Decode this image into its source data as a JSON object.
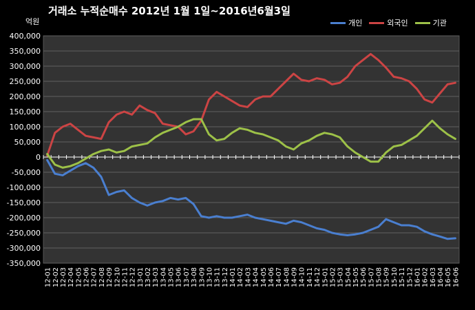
{
  "chart_data": {
    "type": "line",
    "title": "거래소 누적순매수 2012년 1월 1일~2016년6월3일",
    "unit_label": "억원",
    "ylim": [
      -350000,
      400000
    ],
    "y_ticks": [
      "400,000",
      "350,000",
      "300,000",
      "250,000",
      "200,000",
      "150,000",
      "100,000",
      "50,000",
      "0",
      "-50,000",
      "-100,000",
      "-150,000",
      "-200,000",
      "-250,000",
      "-300,000",
      "-350,000"
    ],
    "y_tick_values": [
      400000,
      350000,
      300000,
      250000,
      200000,
      150000,
      100000,
      50000,
      0,
      -50000,
      -100000,
      -150000,
      -200000,
      -250000,
      -300000,
      -350000
    ],
    "categories": [
      "12-01",
      "12-02",
      "12-03",
      "12-04",
      "12-05",
      "12-06",
      "12-07",
      "12-08",
      "12-09",
      "12-10",
      "12-11",
      "12-12",
      "13-01",
      "13-02",
      "13-03",
      "13-04",
      "13-05",
      "13-06",
      "13-07",
      "13-08",
      "13-09",
      "13-10",
      "13-11",
      "13-12",
      "14-01",
      "14-02",
      "14-03",
      "14-04",
      "14-05",
      "14-06",
      "14-07",
      "14-08",
      "14-09",
      "14-10",
      "14-11",
      "14-12",
      "15-01",
      "15-02",
      "15-03",
      "15-04",
      "15-05",
      "15-06",
      "15-07",
      "15-08",
      "15-09",
      "15-10",
      "15-11",
      "15-12",
      "16-01",
      "16-02",
      "16-03",
      "16-04",
      "16-05",
      "16-06"
    ],
    "grid": true,
    "legend_position": "top-right",
    "series": [
      {
        "name": "개인",
        "color": "#4a7fd0",
        "values": [
          -10000,
          -55000,
          -60000,
          -45000,
          -30000,
          -20000,
          -35000,
          -65000,
          -125000,
          -115000,
          -110000,
          -135000,
          -150000,
          -160000,
          -150000,
          -145000,
          -135000,
          -140000,
          -135000,
          -155000,
          -195000,
          -200000,
          -195000,
          -200000,
          -200000,
          -195000,
          -190000,
          -200000,
          -205000,
          -210000,
          -215000,
          -220000,
          -210000,
          -215000,
          -225000,
          -235000,
          -240000,
          -250000,
          -255000,
          -258000,
          -255000,
          -250000,
          -240000,
          -230000,
          -205000,
          -215000,
          -225000,
          -225000,
          -230000,
          -245000,
          -255000,
          -262000,
          -270000,
          -268000
        ]
      },
      {
        "name": "외국인",
        "color": "#cc4444",
        "values": [
          5000,
          80000,
          100000,
          110000,
          90000,
          70000,
          65000,
          60000,
          115000,
          140000,
          150000,
          140000,
          170000,
          155000,
          145000,
          110000,
          105000,
          100000,
          75000,
          85000,
          120000,
          190000,
          215000,
          200000,
          185000,
          170000,
          165000,
          190000,
          200000,
          200000,
          225000,
          250000,
          275000,
          255000,
          250000,
          260000,
          255000,
          240000,
          245000,
          265000,
          300000,
          320000,
          340000,
          320000,
          295000,
          265000,
          260000,
          250000,
          225000,
          190000,
          180000,
          210000,
          240000,
          245000
        ]
      },
      {
        "name": "기관",
        "color": "#9dc148",
        "values": [
          10000,
          -25000,
          -35000,
          -30000,
          -20000,
          -5000,
          10000,
          20000,
          25000,
          15000,
          20000,
          35000,
          40000,
          45000,
          65000,
          80000,
          90000,
          100000,
          115000,
          125000,
          125000,
          75000,
          55000,
          60000,
          80000,
          95000,
          90000,
          80000,
          75000,
          65000,
          55000,
          35000,
          25000,
          45000,
          55000,
          70000,
          80000,
          75000,
          65000,
          35000,
          15000,
          0,
          -15000,
          -15000,
          15000,
          35000,
          40000,
          55000,
          70000,
          95000,
          120000,
          95000,
          75000,
          60000
        ]
      }
    ]
  }
}
